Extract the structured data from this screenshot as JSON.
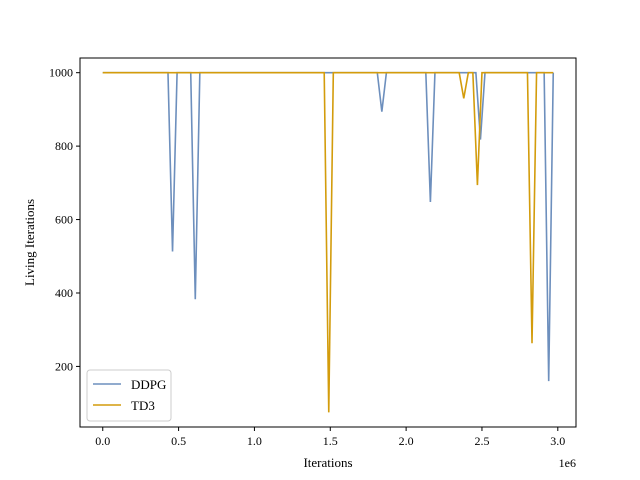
{
  "chart_data": {
    "type": "line",
    "title": "",
    "xlabel": "Iterations",
    "ylabel": "Living Iterations",
    "x_offset_label": "1e6",
    "xlim": [
      -0.15,
      3.12
    ],
    "ylim": [
      35,
      1040
    ],
    "xticks": [
      0.0,
      0.5,
      1.0,
      1.5,
      2.0,
      2.5,
      3.0
    ],
    "xtick_labels": [
      "0.0",
      "0.5",
      "1.0",
      "1.5",
      "2.0",
      "2.5",
      "3.0"
    ],
    "yticks": [
      200,
      400,
      600,
      800,
      1000
    ],
    "ytick_labels": [
      "200",
      "400",
      "600",
      "800",
      "1000"
    ],
    "grid": false,
    "legend_position": "lower-left",
    "series": [
      {
        "name": "DDPG",
        "color": "#6d8fbd",
        "x": [
          0.0,
          0.43,
          0.46,
          0.49,
          0.58,
          0.61,
          0.64,
          1.81,
          1.84,
          1.87,
          2.13,
          2.16,
          2.19,
          2.46,
          2.49,
          2.52,
          2.91,
          2.94,
          2.97
        ],
        "y": [
          1000,
          1000,
          513,
          1000,
          1000,
          383,
          1000,
          1000,
          894,
          1000,
          1000,
          648,
          1000,
          1000,
          818,
          1000,
          1000,
          160,
          1000
        ]
      },
      {
        "name": "TD3",
        "color": "#d39c0c",
        "x": [
          0.0,
          1.46,
          1.49,
          1.52,
          2.35,
          2.38,
          2.41,
          2.44,
          2.47,
          2.5,
          2.8,
          2.83,
          2.86,
          2.97
        ],
        "y": [
          1000,
          1000,
          75,
          1000,
          1000,
          930,
          1000,
          1000,
          694,
          1000,
          1000,
          263,
          1000,
          1000
        ]
      }
    ]
  }
}
